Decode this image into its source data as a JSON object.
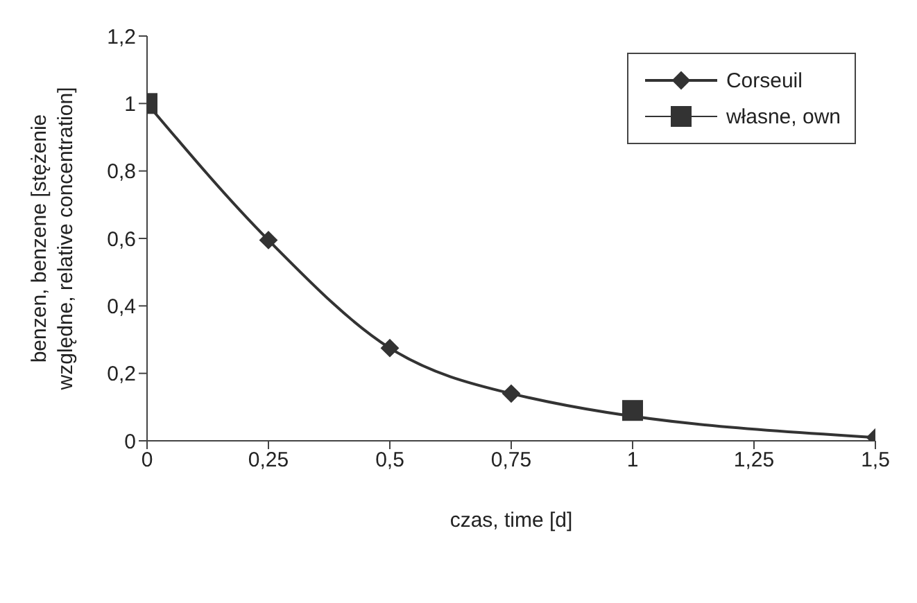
{
  "chart_data": {
    "type": "line",
    "xlabel": "czas, time [d]",
    "ylabel": "benzen, benzene [stężenie względne, relative concentration]",
    "series": [
      {
        "name": "Corseuil",
        "color": "#333333",
        "marker": "diamond",
        "x": [
          0,
          0.25,
          0.5,
          0.75,
          1.5
        ],
        "values": [
          1,
          0.595,
          0.275,
          0.14,
          0.01
        ]
      },
      {
        "name": "własne, own",
        "type": "scatter",
        "color": "#333333",
        "marker": "square",
        "x": [
          0,
          1
        ],
        "values": [
          1,
          0.09
        ]
      }
    ],
    "xlim": [
      0,
      1.5
    ],
    "xticks": [
      0,
      {
        "value": 0.25,
        "label": "0,25"
      },
      {
        "value": 0.5,
        "label": "0,5"
      },
      {
        "value": 0.75,
        "label": "0,75"
      },
      1,
      {
        "value": 1.25,
        "label": "1,25"
      },
      {
        "value": 1.5,
        "label": "1,5"
      }
    ],
    "ylim": [
      0,
      1.2
    ],
    "yticks": [
      0,
      {
        "value": 0.2,
        "label": "0,2"
      },
      {
        "value": 0.4,
        "label": "0,4"
      },
      {
        "value": 0.6,
        "label": "0,6"
      },
      {
        "value": 0.8,
        "label": "0,8"
      },
      1,
      {
        "value": 1.2,
        "label": "1,2"
      }
    ],
    "grid": false,
    "legend": "top right"
  }
}
